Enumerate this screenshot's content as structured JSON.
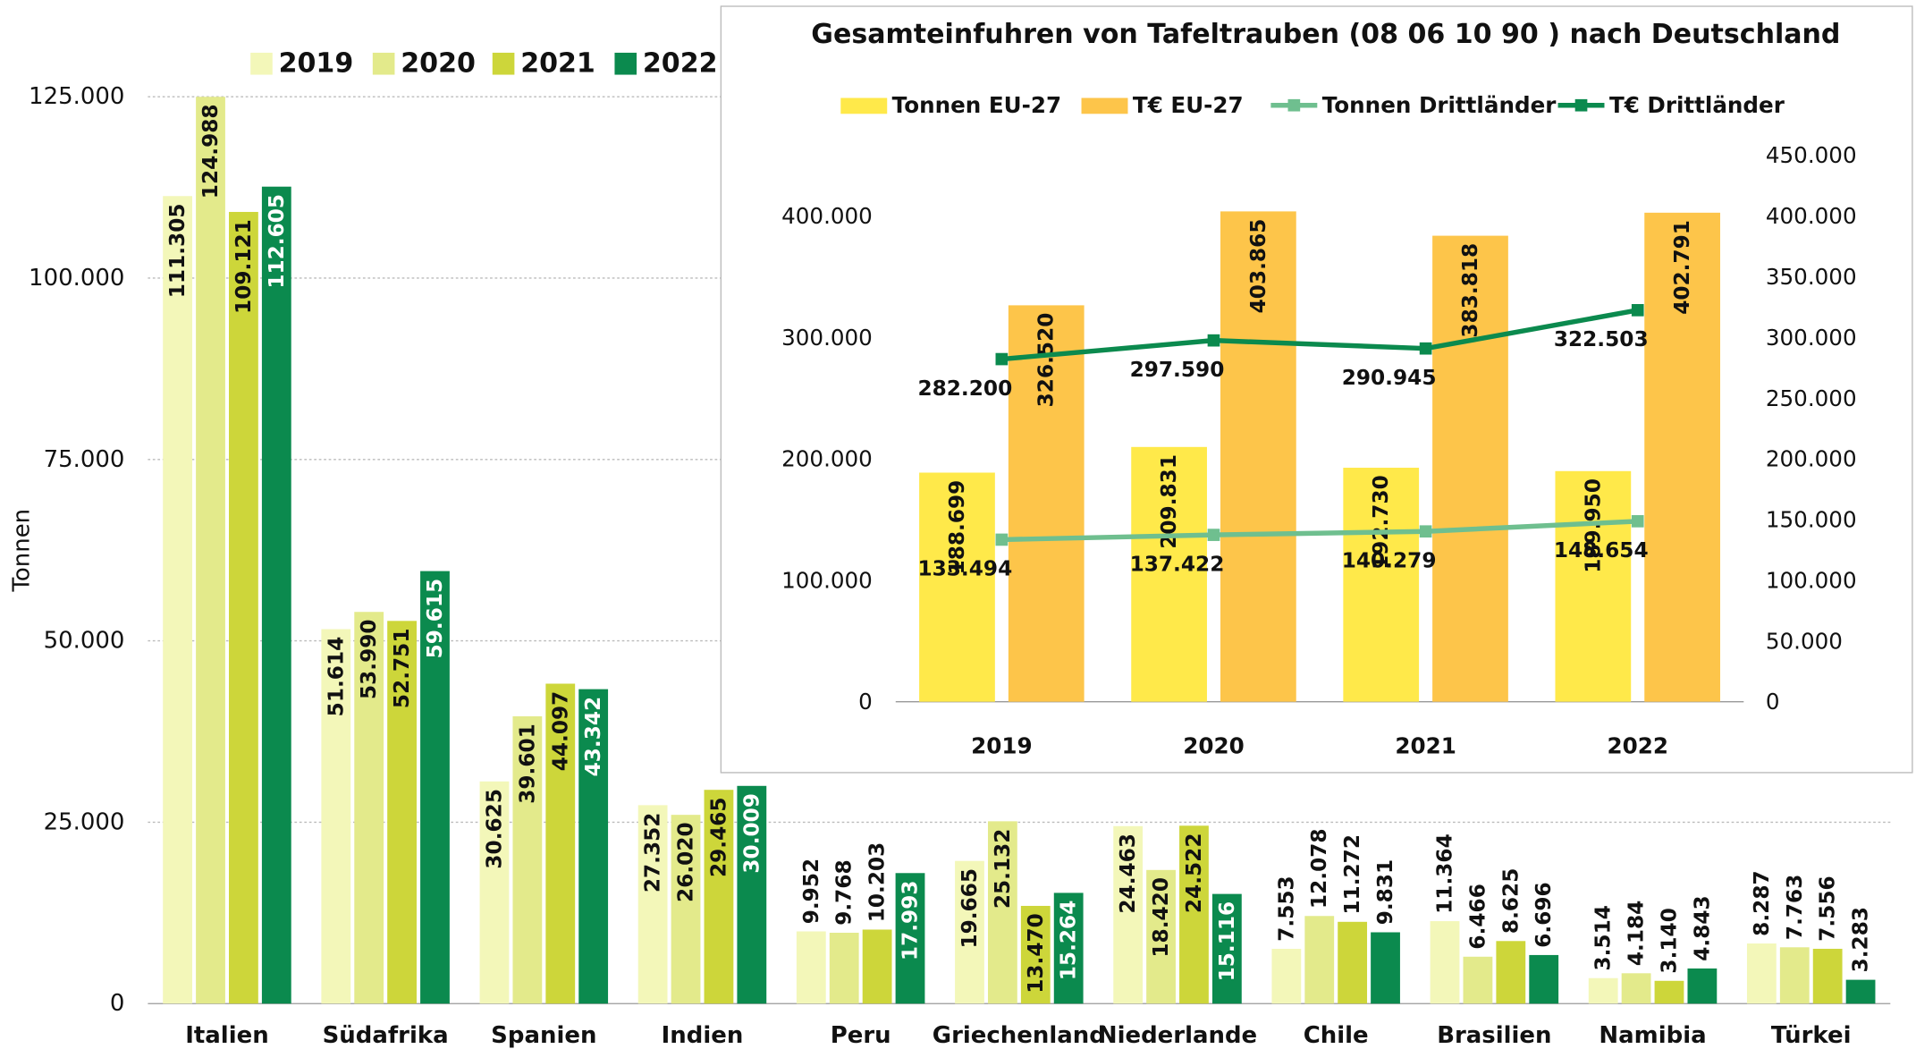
{
  "chart_data": [
    {
      "type": "bar",
      "ylabel": "Tonnen",
      "categories": [
        "Italien",
        "Südafrika",
        "Spanien",
        "Indien",
        "Peru",
        "Griechenland",
        "Niederlande",
        "Chile",
        "Brasilien",
        "Namibia",
        "Türkei"
      ],
      "series": [
        {
          "name": "2019",
          "color": "#f3f7b9",
          "values": [
            111305,
            51614,
            30625,
            27352,
            9952,
            19665,
            24463,
            7553,
            11364,
            3514,
            8287
          ],
          "value_labels": [
            "111.305",
            "51.614",
            "30.625",
            "27.352",
            "9.952",
            "19.665",
            "24.463",
            "7.553",
            "11.364",
            "3.514",
            "8.287"
          ]
        },
        {
          "name": "2020",
          "color": "#e3ea8b",
          "values": [
            124988,
            53990,
            39601,
            26020,
            9768,
            25132,
            18420,
            12078,
            6466,
            4184,
            7763
          ],
          "value_labels": [
            "124.988",
            "53.990",
            "39.601",
            "26.020",
            "9.768",
            "25.132",
            "18.420",
            "12.078",
            "6.466",
            "4.184",
            "7.763"
          ]
        },
        {
          "name": "2021",
          "color": "#cdd63a",
          "values": [
            109121,
            52751,
            44097,
            29465,
            10203,
            13470,
            24522,
            11272,
            8625,
            3140,
            7556
          ],
          "value_labels": [
            "109.121",
            "52.751",
            "44.097",
            "29.465",
            "10.203",
            "13.470",
            "24.522",
            "11.272",
            "8.625",
            "3.140",
            "7.556"
          ]
        },
        {
          "name": "2022",
          "color": "#0b8a4e",
          "values": [
            112605,
            59615,
            43342,
            30009,
            17993,
            15264,
            15116,
            9831,
            6696,
            4843,
            3283
          ],
          "value_labels": [
            "112.605",
            "59.615",
            "43.342",
            "30.009",
            "17.993",
            "15.264",
            "15.116",
            "9.831",
            "6.696",
            "4.843",
            "3.283"
          ]
        }
      ],
      "ylim": [
        0,
        125000
      ],
      "yticks": [
        0,
        {
          "value": 25000,
          "label": "25.000"
        },
        {
          "value": 50000,
          "label": "50.000"
        },
        {
          "value": 75000,
          "label": "75.000"
        },
        {
          "value": 100000,
          "label": "100.000"
        },
        {
          "value": 125000,
          "label": "125.000"
        }
      ],
      "grid": true,
      "legend": "top"
    },
    {
      "type": "combo",
      "title": "Gesamteinfuhren von Tafeltrauben (08 06 10 90 ) nach Deutschland",
      "categories": [
        "2019",
        "2020",
        "2021",
        "2022"
      ],
      "series": [
        {
          "name": "Tonnen EU-27",
          "kind": "bar",
          "color": "#ffe94a",
          "values": [
            188699,
            209831,
            192730,
            189950
          ],
          "value_labels": [
            "188.699",
            "209.831",
            "192.730",
            "189.950"
          ]
        },
        {
          "name": "T€ EU-27",
          "kind": "bar",
          "color": "#fdc54a",
          "values": [
            326520,
            403865,
            383818,
            402791
          ],
          "value_labels": [
            "326.520",
            "403.865",
            "383.818",
            "402.791"
          ]
        },
        {
          "name": "Tonnen Drittländer",
          "kind": "line",
          "axis": "y2",
          "color": "#6fbf8f",
          "values": [
            133494,
            137422,
            140279,
            148654
          ],
          "value_labels": [
            "133.494",
            "137.422",
            "140.279",
            "148.654"
          ]
        },
        {
          "name": "T€ Drittländer",
          "kind": "line",
          "axis": "y2",
          "color": "#0b8a4e",
          "values": [
            282200,
            297590,
            290945,
            322503
          ],
          "value_labels": [
            "282.200",
            "297.590",
            "290.945",
            "322.503"
          ]
        }
      ],
      "ylim": [
        0,
        450000
      ],
      "yticks": [
        0,
        {
          "value": 100000,
          "label": "100.000"
        },
        {
          "value": 200000,
          "label": "200.000"
        },
        {
          "value": 300000,
          "label": "300.000"
        },
        {
          "value": 400000,
          "label": "400.000"
        }
      ],
      "y2lim": [
        0,
        450000
      ],
      "y2ticks": [
        0,
        {
          "value": 50000,
          "label": "50.000"
        },
        {
          "value": 100000,
          "label": "100.000"
        },
        {
          "value": 150000,
          "label": "150.000"
        },
        {
          "value": 200000,
          "label": "200.000"
        },
        {
          "value": 250000,
          "label": "250.000"
        },
        {
          "value": 300000,
          "label": "300.000"
        },
        {
          "value": 350000,
          "label": "350.000"
        },
        {
          "value": 400000,
          "label": "400.000"
        },
        {
          "value": 450000,
          "label": "450.000"
        }
      ],
      "grid": false,
      "legend": "top"
    }
  ]
}
